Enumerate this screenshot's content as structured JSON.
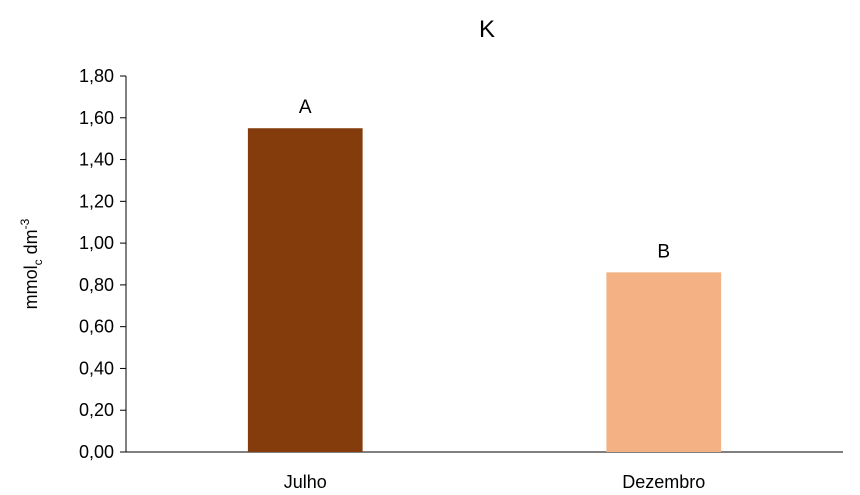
{
  "chart_data": {
    "type": "bar",
    "title": "K",
    "xlabel": "",
    "ylabel": {
      "parts": [
        {
          "text": "mmol",
          "shift": "none"
        },
        {
          "text": "c",
          "shift": "sub"
        },
        {
          "text": " dm",
          "shift": "none"
        },
        {
          "text": "-3",
          "shift": "super"
        }
      ]
    },
    "categories": [
      "Julho",
      "Dezembro"
    ],
    "series": [
      {
        "values": [
          1.55,
          0.86
        ],
        "colors": [
          "#843C0C",
          "#F4B183"
        ],
        "labels": [
          "A",
          "B"
        ]
      }
    ],
    "ylim": [
      0,
      1.8
    ],
    "yticks": [
      "0,00",
      "0,20",
      "0,40",
      "0,60",
      "0,80",
      "1,00",
      "1,20",
      "1,40",
      "1,60",
      "1,80"
    ],
    "grid": false,
    "legend": "none"
  }
}
